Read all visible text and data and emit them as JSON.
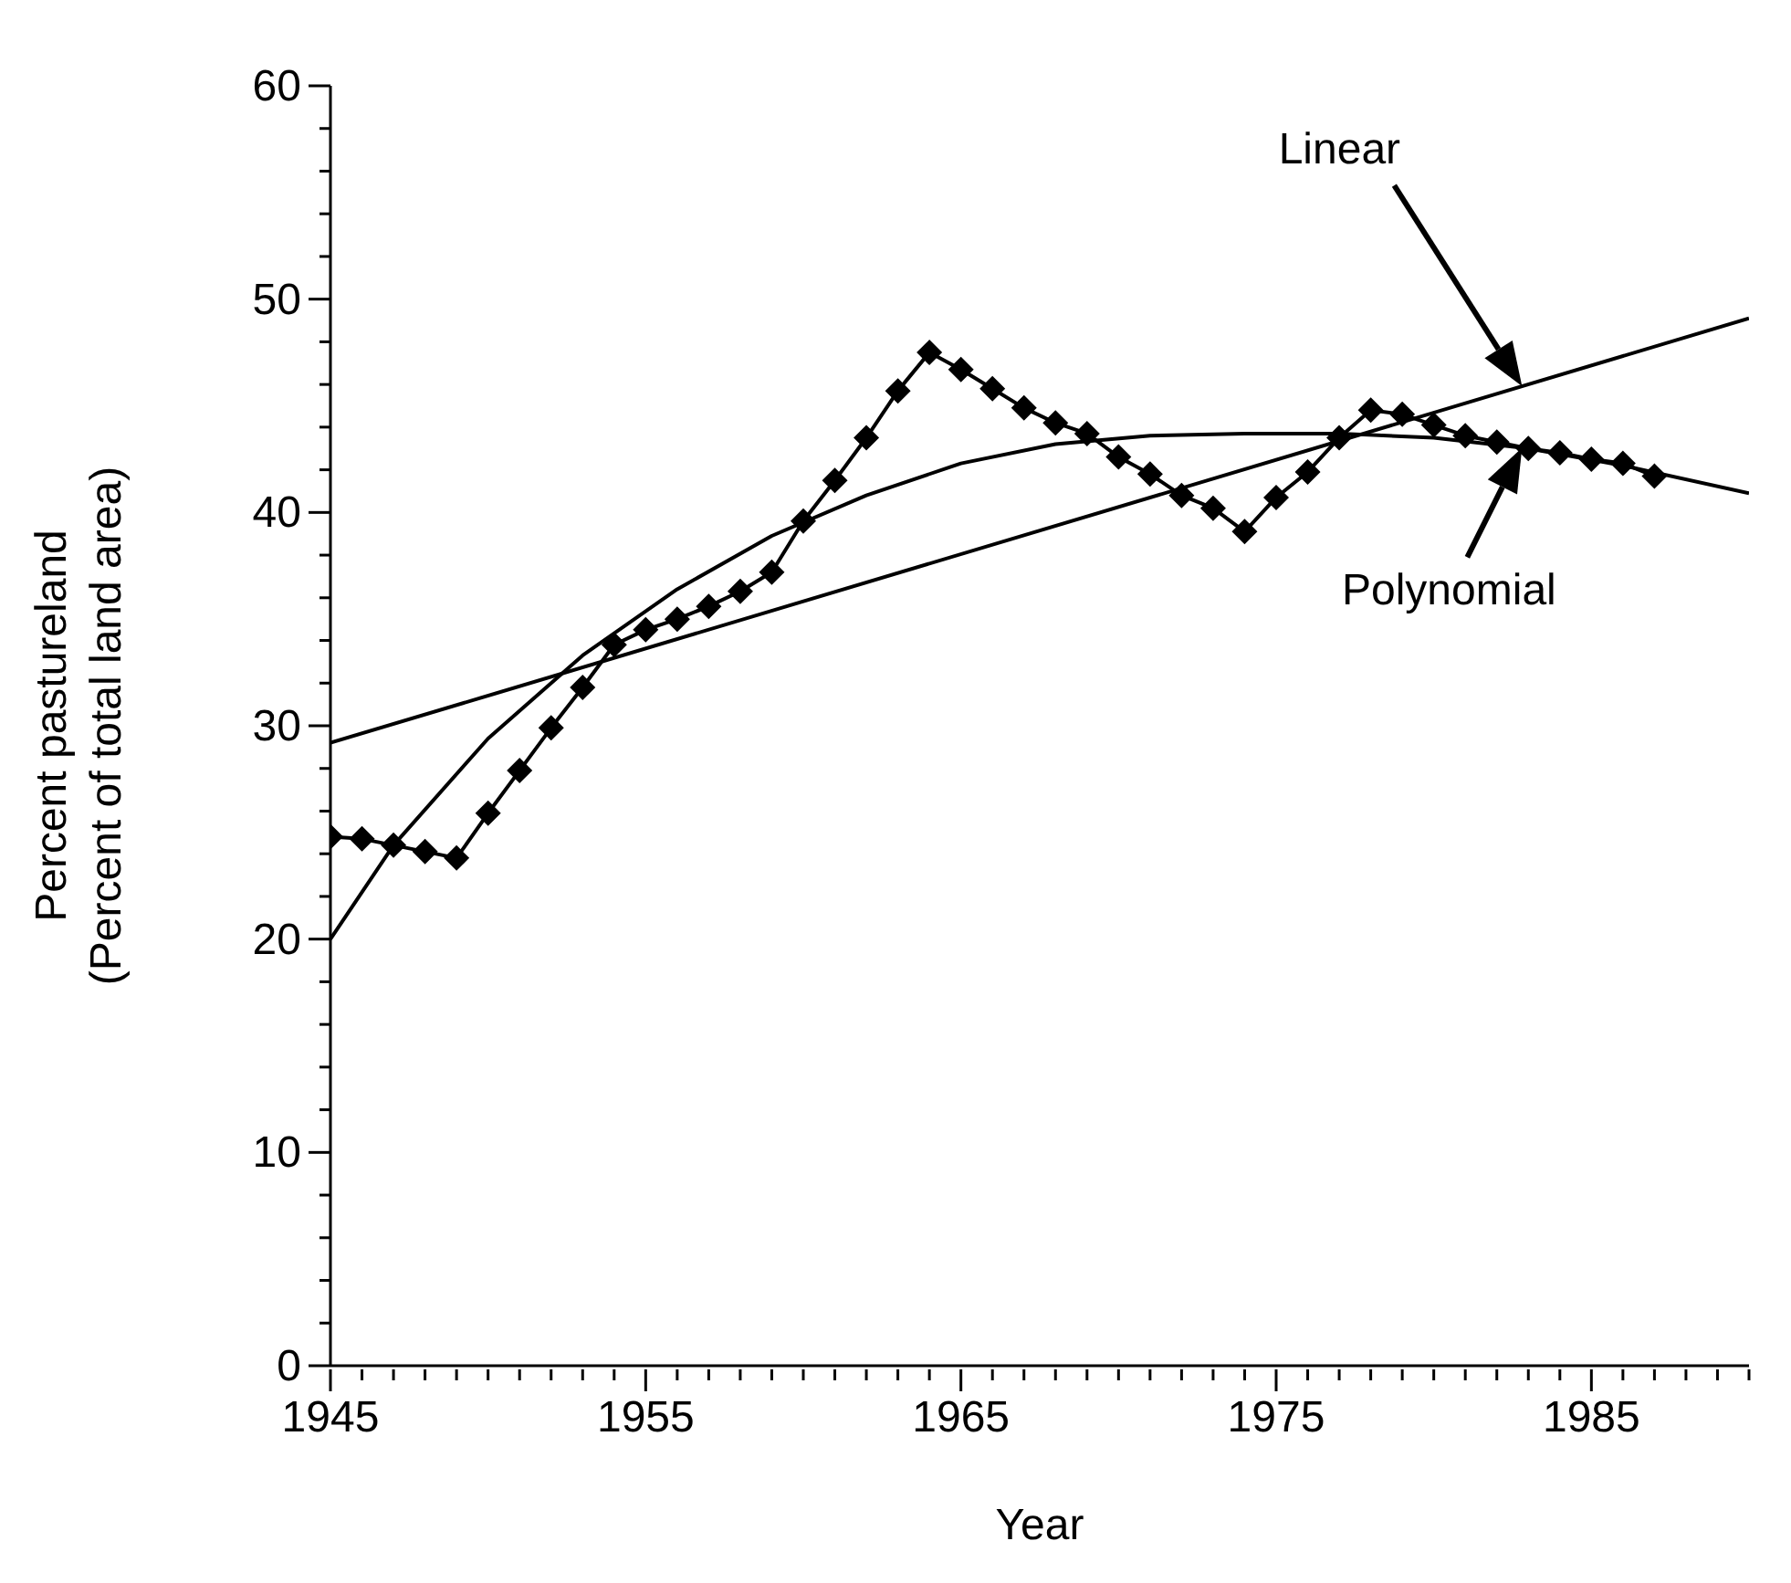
{
  "chart_data": {
    "type": "line",
    "xlabel": "Year",
    "ylabel": "Percent  pastureland\n(Percent of total land area)",
    "marker": "diamond",
    "x": [
      1945,
      1946,
      1947,
      1948,
      1949,
      1950,
      1951,
      1952,
      1953,
      1954,
      1955,
      1956,
      1957,
      1958,
      1959,
      1960,
      1961,
      1962,
      1963,
      1964,
      1965,
      1966,
      1967,
      1968,
      1969,
      1970,
      1971,
      1972,
      1973,
      1974,
      1975,
      1976,
      1977,
      1978,
      1979,
      1980,
      1981,
      1982,
      1983,
      1984,
      1985,
      1986,
      1987
    ],
    "xlim": [
      1945,
      1990
    ],
    "xticks": [
      1945,
      {
        "value": 1946,
        "label": null
      },
      {
        "value": 1947,
        "label": null
      },
      {
        "value": 1948,
        "label": null
      },
      {
        "value": 1949,
        "label": null
      },
      {
        "value": 1950,
        "label": null
      },
      {
        "value": 1951,
        "label": null
      },
      {
        "value": 1952,
        "label": null
      },
      {
        "value": 1953,
        "label": null
      },
      {
        "value": 1954,
        "label": null
      },
      1955,
      {
        "value": 1956,
        "label": null
      },
      {
        "value": 1957,
        "label": null
      },
      {
        "value": 1958,
        "label": null
      },
      {
        "value": 1959,
        "label": null
      },
      {
        "value": 1960,
        "label": null
      },
      {
        "value": 1961,
        "label": null
      },
      {
        "value": 1962,
        "label": null
      },
      {
        "value": 1963,
        "label": null
      },
      {
        "value": 1964,
        "label": null
      },
      1965,
      {
        "value": 1966,
        "label": null
      },
      {
        "value": 1967,
        "label": null
      },
      {
        "value": 1968,
        "label": null
      },
      {
        "value": 1969,
        "label": null
      },
      {
        "value": 1970,
        "label": null
      },
      {
        "value": 1971,
        "label": null
      },
      {
        "value": 1972,
        "label": null
      },
      {
        "value": 1973,
        "label": null
      },
      {
        "value": 1974,
        "label": null
      },
      1975,
      {
        "value": 1976,
        "label": null
      },
      {
        "value": 1977,
        "label": null
      },
      {
        "value": 1978,
        "label": null
      },
      {
        "value": 1979,
        "label": null
      },
      {
        "value": 1980,
        "label": null
      },
      {
        "value": 1981,
        "label": null
      },
      {
        "value": 1982,
        "label": null
      },
      {
        "value": 1983,
        "label": null
      },
      {
        "value": 1984,
        "label": null
      },
      1985,
      {
        "value": 1986,
        "label": null
      },
      {
        "value": 1987,
        "label": null
      },
      {
        "value": 1988,
        "label": null
      },
      {
        "value": 1989,
        "label": null
      },
      {
        "value": 1990,
        "label": null
      }
    ],
    "ylim": [
      0,
      60
    ],
    "yticks": [
      0,
      {
        "value": 2,
        "label": null
      },
      {
        "value": 4,
        "label": null
      },
      {
        "value": 6,
        "label": null
      },
      {
        "value": 8,
        "label": null
      },
      10,
      {
        "value": 12,
        "label": null
      },
      {
        "value": 14,
        "label": null
      },
      {
        "value": 16,
        "label": null
      },
      {
        "value": 18,
        "label": null
      },
      20,
      {
        "value": 22,
        "label": null
      },
      {
        "value": 24,
        "label": null
      },
      {
        "value": 26,
        "label": null
      },
      {
        "value": 28,
        "label": null
      },
      30,
      {
        "value": 32,
        "label": null
      },
      {
        "value": 34,
        "label": null
      },
      {
        "value": 36,
        "label": null
      },
      {
        "value": 38,
        "label": null
      },
      40,
      {
        "value": 42,
        "label": null
      },
      {
        "value": 44,
        "label": null
      },
      {
        "value": 46,
        "label": null
      },
      {
        "value": 48,
        "label": null
      },
      50,
      {
        "value": 52,
        "label": null
      },
      {
        "value": 54,
        "label": null
      },
      {
        "value": 56,
        "label": null
      },
      {
        "value": 58,
        "label": null
      },
      60
    ],
    "series": [
      {
        "color": "#000000",
        "values": [
          24.8,
          24.7,
          24.4,
          24.1,
          23.8,
          25.9,
          27.9,
          29.9,
          31.8,
          33.8,
          34.5,
          35.0,
          35.6,
          36.3,
          37.2,
          39.6,
          41.5,
          43.5,
          45.7,
          47.5,
          46.7,
          45.8,
          44.9,
          44.2,
          43.7,
          42.6,
          41.8,
          40.8,
          40.2,
          39.1,
          40.7,
          41.9,
          43.5,
          44.8,
          44.6,
          44.1,
          43.6,
          43.3,
          43.0,
          42.8,
          42.5,
          42.3,
          41.7
        ]
      },
      {
        "name": "Linear",
        "type": "line",
        "marker": "none",
        "color": "#000000",
        "x": [
          1945,
          1990
        ],
        "values": [
          29.2,
          49.1
        ]
      },
      {
        "name": "Polynomial",
        "type": "line",
        "marker": "none",
        "color": "#000000",
        "x": [
          1945,
          1947,
          1950,
          1953,
          1956,
          1959,
          1962,
          1965,
          1968,
          1971,
          1974,
          1977,
          1980,
          1983,
          1986,
          1990
        ],
        "values": [
          20,
          24.4,
          29.4,
          33.3,
          36.4,
          38.9,
          40.8,
          42.3,
          43.2,
          43.6,
          43.7,
          43.7,
          43.5,
          43.0,
          42.2,
          40.9
        ]
      }
    ]
  }
}
